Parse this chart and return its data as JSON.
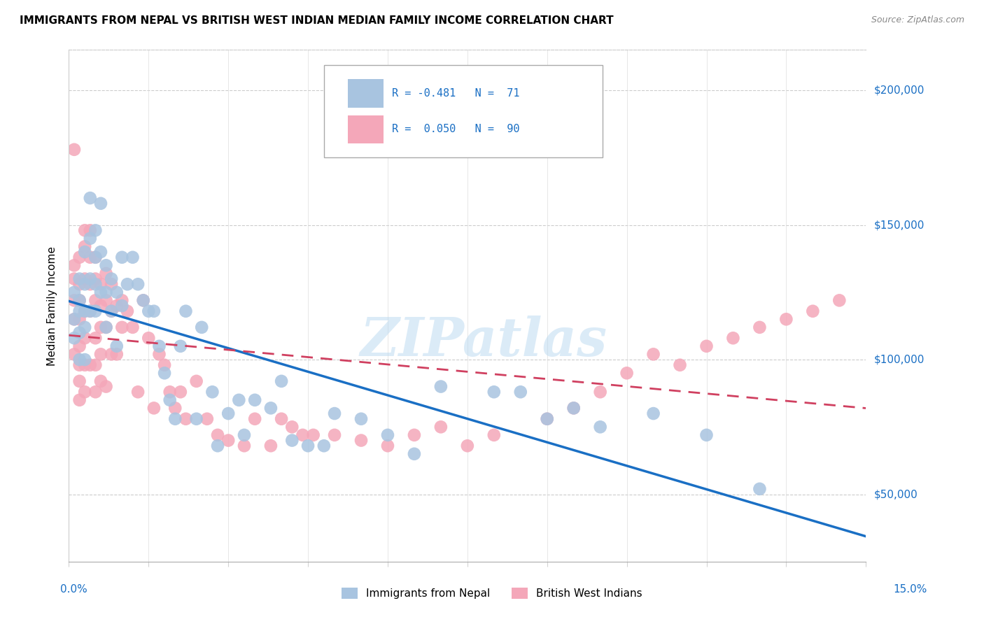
{
  "title": "IMMIGRANTS FROM NEPAL VS BRITISH WEST INDIAN MEDIAN FAMILY INCOME CORRELATION CHART",
  "source": "Source: ZipAtlas.com",
  "ylabel": "Median Family Income",
  "yticks": [
    50000,
    100000,
    150000,
    200000
  ],
  "ytick_labels": [
    "$50,000",
    "$100,000",
    "$150,000",
    "$200,000"
  ],
  "xlim": [
    0.0,
    0.15
  ],
  "ylim": [
    25000,
    215000
  ],
  "nepal_color": "#a8c4e0",
  "bwi_color": "#f4a7b9",
  "nepal_line_color": "#1a6fc4",
  "bwi_line_color": "#d04060",
  "watermark": "ZIPatlas",
  "nepal_R": -0.481,
  "nepal_N": 71,
  "bwi_R": 0.05,
  "bwi_N": 90,
  "nepal_points_x": [
    0.001,
    0.001,
    0.001,
    0.002,
    0.002,
    0.002,
    0.002,
    0.002,
    0.003,
    0.003,
    0.003,
    0.003,
    0.003,
    0.004,
    0.004,
    0.004,
    0.004,
    0.005,
    0.005,
    0.005,
    0.005,
    0.006,
    0.006,
    0.006,
    0.007,
    0.007,
    0.007,
    0.008,
    0.008,
    0.009,
    0.009,
    0.01,
    0.01,
    0.011,
    0.012,
    0.013,
    0.014,
    0.015,
    0.016,
    0.017,
    0.018,
    0.019,
    0.02,
    0.021,
    0.022,
    0.024,
    0.025,
    0.027,
    0.028,
    0.03,
    0.032,
    0.033,
    0.035,
    0.038,
    0.04,
    0.042,
    0.045,
    0.048,
    0.05,
    0.055,
    0.06,
    0.065,
    0.07,
    0.08,
    0.085,
    0.09,
    0.095,
    0.1,
    0.11,
    0.12,
    0.13
  ],
  "nepal_points_y": [
    115000,
    125000,
    108000,
    130000,
    122000,
    118000,
    110000,
    100000,
    140000,
    128000,
    118000,
    112000,
    100000,
    160000,
    145000,
    130000,
    118000,
    148000,
    138000,
    128000,
    118000,
    158000,
    140000,
    125000,
    135000,
    125000,
    112000,
    130000,
    118000,
    125000,
    105000,
    138000,
    120000,
    128000,
    138000,
    128000,
    122000,
    118000,
    118000,
    105000,
    95000,
    85000,
    78000,
    105000,
    118000,
    78000,
    112000,
    88000,
    68000,
    80000,
    85000,
    72000,
    85000,
    82000,
    92000,
    70000,
    68000,
    68000,
    80000,
    78000,
    72000,
    65000,
    90000,
    88000,
    88000,
    78000,
    82000,
    75000,
    80000,
    72000,
    52000
  ],
  "bwi_points_x": [
    0.001,
    0.001,
    0.001,
    0.001,
    0.001,
    0.001,
    0.002,
    0.002,
    0.002,
    0.002,
    0.002,
    0.002,
    0.002,
    0.002,
    0.003,
    0.003,
    0.003,
    0.003,
    0.003,
    0.003,
    0.003,
    0.004,
    0.004,
    0.004,
    0.004,
    0.004,
    0.005,
    0.005,
    0.005,
    0.005,
    0.005,
    0.005,
    0.006,
    0.006,
    0.006,
    0.006,
    0.006,
    0.007,
    0.007,
    0.007,
    0.007,
    0.008,
    0.008,
    0.008,
    0.009,
    0.009,
    0.01,
    0.01,
    0.011,
    0.012,
    0.013,
    0.014,
    0.015,
    0.016,
    0.017,
    0.018,
    0.019,
    0.02,
    0.021,
    0.022,
    0.024,
    0.026,
    0.028,
    0.03,
    0.033,
    0.035,
    0.038,
    0.04,
    0.042,
    0.044,
    0.046,
    0.05,
    0.055,
    0.06,
    0.065,
    0.07,
    0.075,
    0.08,
    0.09,
    0.095,
    0.1,
    0.105,
    0.11,
    0.115,
    0.12,
    0.125,
    0.13,
    0.135,
    0.14,
    0.145
  ],
  "bwi_points_y": [
    178000,
    135000,
    130000,
    122000,
    115000,
    102000,
    138000,
    128000,
    122000,
    115000,
    105000,
    98000,
    92000,
    85000,
    148000,
    142000,
    130000,
    118000,
    108000,
    98000,
    88000,
    148000,
    138000,
    128000,
    118000,
    98000,
    138000,
    130000,
    122000,
    108000,
    98000,
    88000,
    128000,
    120000,
    112000,
    102000,
    92000,
    132000,
    122000,
    112000,
    90000,
    128000,
    118000,
    102000,
    120000,
    102000,
    122000,
    112000,
    118000,
    112000,
    88000,
    122000,
    108000,
    82000,
    102000,
    98000,
    88000,
    82000,
    88000,
    78000,
    92000,
    78000,
    72000,
    70000,
    68000,
    78000,
    68000,
    78000,
    75000,
    72000,
    72000,
    72000,
    70000,
    68000,
    72000,
    75000,
    68000,
    72000,
    78000,
    82000,
    88000,
    95000,
    102000,
    98000,
    105000,
    108000,
    112000,
    115000,
    118000,
    122000
  ]
}
